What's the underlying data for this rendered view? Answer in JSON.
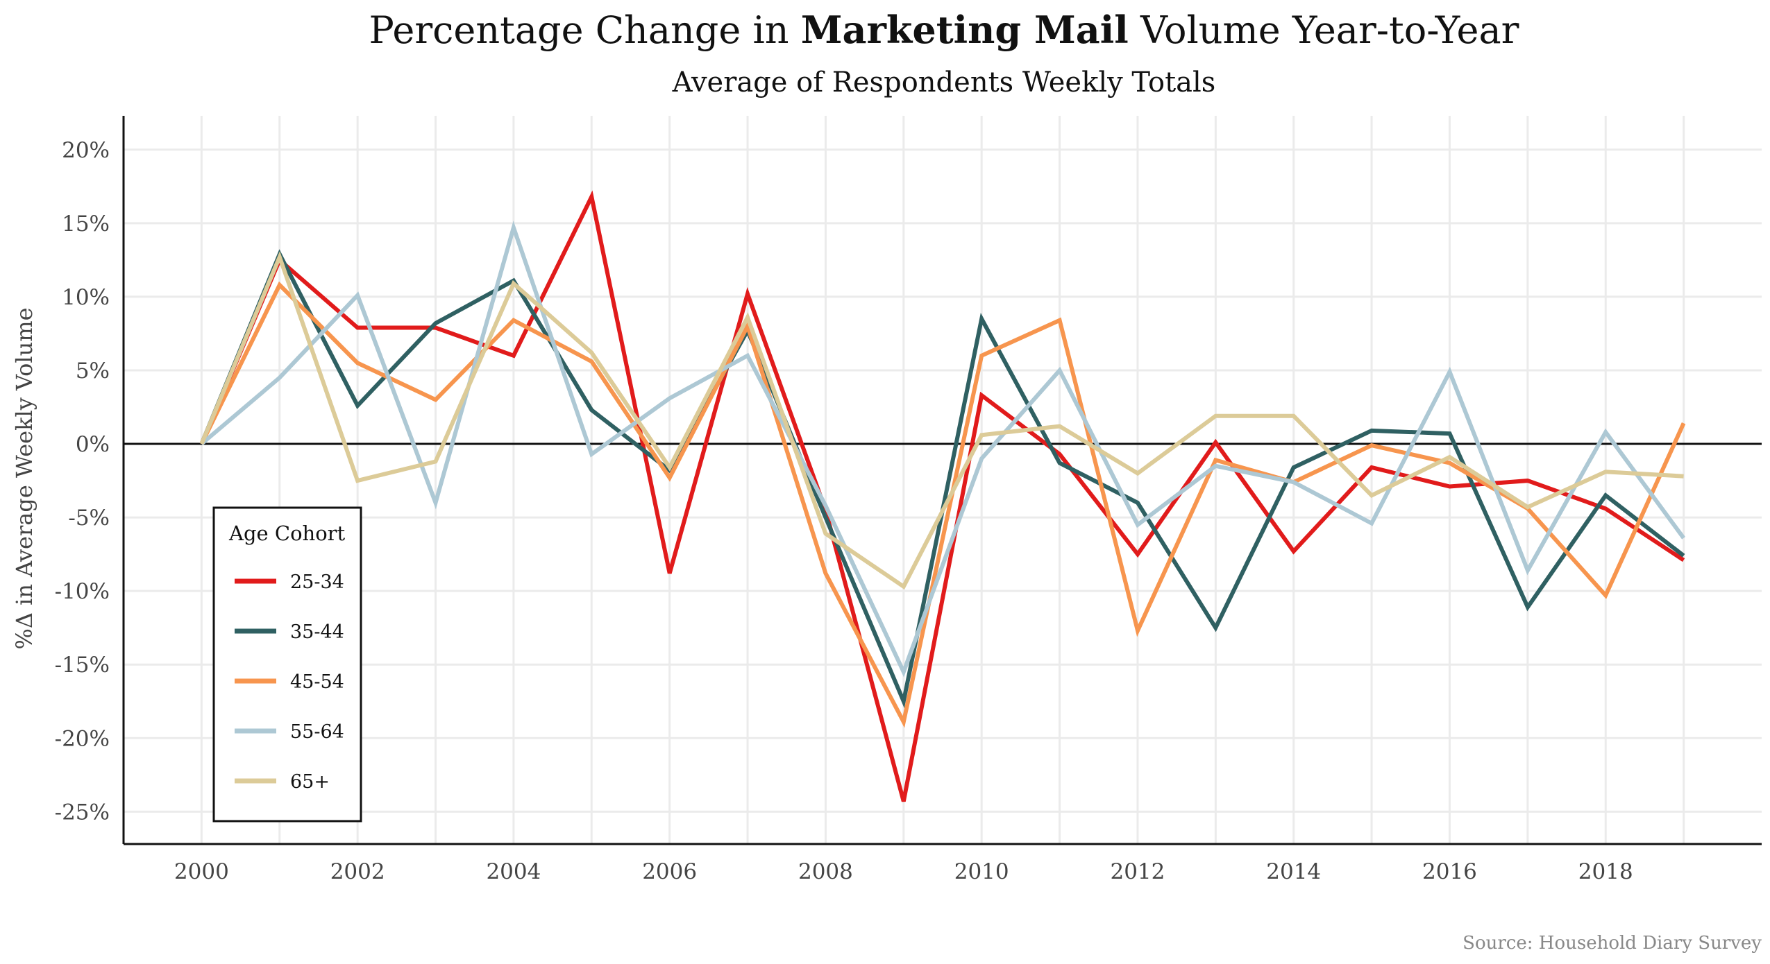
{
  "chart_data": {
    "type": "line",
    "title_prefix": "Percentage Change in ",
    "title_bold": "Marketing Mail",
    "title_suffix": " Volume Year-to-Year",
    "subtitle": "Average of Respondents Weekly Totals",
    "ylabel": "%Δ in Average Weekly Volume",
    "xlabel": "",
    "source": "Source: Household Diary Survey",
    "x": [
      2000,
      2001,
      2002,
      2003,
      2004,
      2005,
      2006,
      2007,
      2008,
      2009,
      2010,
      2011,
      2012,
      2013,
      2014,
      2015,
      2016,
      2017,
      2018,
      2019
    ],
    "xticks": [
      "2000",
      "2002",
      "2004",
      "2006",
      "2008",
      "2010",
      "2012",
      "2014",
      "2016",
      "2018"
    ],
    "xtick_values": [
      2000,
      2002,
      2004,
      2006,
      2008,
      2010,
      2012,
      2014,
      2016,
      2018
    ],
    "yticks": [
      "20%",
      "15%",
      "10%",
      "5%",
      "0%",
      "-5%",
      "-10%",
      "-15%",
      "-20%",
      "-25%"
    ],
    "ytick_values": [
      20,
      15,
      10,
      5,
      0,
      -5,
      -10,
      -15,
      -20,
      -25
    ],
    "xlim": [
      1999,
      2020
    ],
    "ylim": [
      -27.2,
      22.3
    ],
    "grid": true,
    "legend": {
      "title": "Age Cohort",
      "position": "bottom-left"
    },
    "series": [
      {
        "name": "25-34",
        "color": "#e11b1b",
        "values": [
          0.0,
          12.5,
          7.9,
          7.9,
          6.0,
          16.8,
          -8.8,
          10.2,
          -4.5,
          -24.3,
          3.3,
          -0.7,
          -7.5,
          0.1,
          -7.3,
          -1.6,
          -2.9,
          -2.5,
          -4.4,
          -7.9
        ]
      },
      {
        "name": "35-44",
        "color": "#2f6062",
        "values": [
          0.0,
          12.9,
          2.6,
          8.2,
          11.1,
          2.3,
          -1.8,
          7.7,
          -5.0,
          -17.5,
          8.5,
          -1.3,
          -4.0,
          -12.5,
          -1.6,
          0.9,
          0.7,
          -11.1,
          -3.5,
          -7.6
        ]
      },
      {
        "name": "45-54",
        "color": "#f7954e",
        "values": [
          0.0,
          10.8,
          5.5,
          3.0,
          8.4,
          5.6,
          -2.3,
          8.0,
          -8.8,
          -18.9,
          6.0,
          8.4,
          -12.7,
          -1.1,
          -2.6,
          -0.1,
          -1.3,
          -4.4,
          -10.3,
          1.4
        ]
      },
      {
        "name": "55-64",
        "color": "#adc8d4",
        "values": [
          0.0,
          4.5,
          10.1,
          -4.0,
          14.7,
          -0.7,
          3.1,
          6.0,
          -4.2,
          -15.5,
          -1.0,
          5.0,
          -5.5,
          -1.5,
          -2.6,
          -5.4,
          4.9,
          -8.6,
          0.8,
          -6.4
        ]
      },
      {
        "name": "65+",
        "color": "#dccb98",
        "values": [
          0.0,
          12.7,
          -2.5,
          -1.2,
          10.9,
          6.2,
          -1.6,
          8.6,
          -6.1,
          -9.7,
          0.6,
          1.2,
          -2.0,
          1.9,
          1.9,
          -3.5,
          -0.9,
          -4.3,
          -1.9,
          -2.2
        ]
      }
    ]
  }
}
